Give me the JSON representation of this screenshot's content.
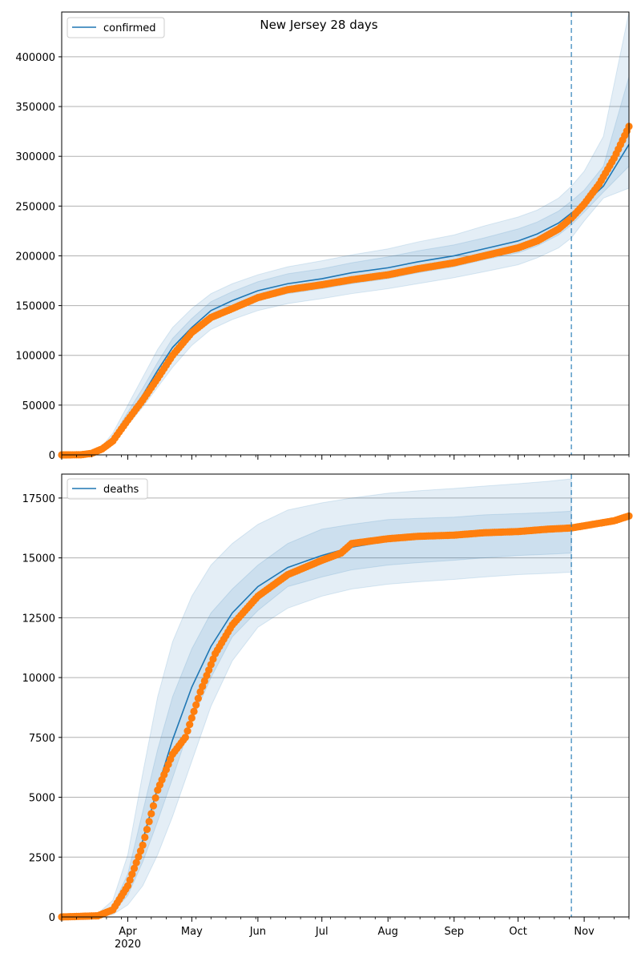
{
  "figure": {
    "title": "New Jersey 28 days"
  },
  "x_axis": {
    "month_labels": [
      "Apr",
      "May",
      "Jun",
      "Jul",
      "Aug",
      "Sep",
      "Oct",
      "Nov"
    ],
    "year_label": "2020",
    "xlim": [
      "2020-03-01",
      "2020-11-22"
    ],
    "cutoff_date": "2020-10-26"
  },
  "colors": {
    "line": "#1f77b4",
    "points": "#ff7f0e",
    "band": "#1f77b4",
    "grid": "#b0b0b0"
  },
  "chart_data": [
    {
      "type": "line",
      "legend": {
        "label": "confirmed",
        "placement": "upper-left"
      },
      "ylim": [
        0,
        445000
      ],
      "yticks": [
        0,
        50000,
        100000,
        150000,
        200000,
        250000,
        300000,
        350000,
        400000
      ],
      "ytick_labels": [
        "0",
        "50000",
        "100000",
        "150000",
        "200000",
        "250000",
        "300000",
        "350000",
        "400000"
      ],
      "grid": "horizontal",
      "model_line": {
        "dates": [
          "2020-03-01",
          "2020-03-15",
          "2020-03-20",
          "2020-03-25",
          "2020-04-01",
          "2020-04-08",
          "2020-04-15",
          "2020-04-22",
          "2020-05-01",
          "2020-05-10",
          "2020-05-20",
          "2020-06-01",
          "2020-06-15",
          "2020-07-01",
          "2020-07-15",
          "2020-08-01",
          "2020-08-15",
          "2020-09-01",
          "2020-09-15",
          "2020-10-01",
          "2020-10-10",
          "2020-10-20",
          "2020-10-26",
          "2020-11-01",
          "2020-11-10",
          "2020-11-22"
        ],
        "values": [
          0,
          500,
          6000,
          16000,
          38000,
          60000,
          85000,
          108000,
          128000,
          145000,
          155000,
          165000,
          172000,
          177000,
          183000,
          188000,
          194000,
          200000,
          207000,
          215000,
          222000,
          233000,
          243000,
          252000,
          270000,
          312000
        ]
      },
      "observed": {
        "dates": [
          "2020-03-01",
          "2020-03-10",
          "2020-03-15",
          "2020-03-20",
          "2020-03-25",
          "2020-04-01",
          "2020-04-08",
          "2020-04-15",
          "2020-04-22",
          "2020-05-01",
          "2020-05-10",
          "2020-05-20",
          "2020-06-01",
          "2020-06-15",
          "2020-07-01",
          "2020-07-15",
          "2020-08-01",
          "2020-08-15",
          "2020-09-01",
          "2020-09-15",
          "2020-10-01",
          "2020-10-10",
          "2020-10-20",
          "2020-10-26",
          "2020-11-01",
          "2020-11-08",
          "2020-11-15",
          "2020-11-22"
        ],
        "values": [
          0,
          100,
          1500,
          6000,
          14000,
          35000,
          55000,
          77000,
          100000,
          123000,
          138000,
          147000,
          158000,
          166000,
          171000,
          176000,
          181000,
          187000,
          193000,
          200000,
          208000,
          215000,
          227000,
          238000,
          252000,
          272000,
          298000,
          330000
        ]
      },
      "bands": [
        {
          "lower": [
            0,
            200,
            4000,
            13000,
            30000,
            48000,
            68000,
            88000,
            110000,
            126000,
            136000,
            145000,
            152000,
            157000,
            162000,
            167000,
            172000,
            178000,
            184000,
            191000,
            198000,
            208000,
            218000,
            235000,
            258000,
            268000
          ],
          "upper": [
            0,
            1000,
            9000,
            22000,
            50000,
            78000,
            106000,
            128000,
            147000,
            162000,
            172000,
            181000,
            189000,
            195000,
            201000,
            207000,
            214000,
            221000,
            230000,
            239000,
            246000,
            258000,
            270000,
            285000,
            320000,
            445000
          ]
        },
        {
          "lower": [
            0,
            300,
            5000,
            14500,
            34000,
            54000,
            77000,
            99000,
            120000,
            136000,
            146000,
            155000,
            162000,
            167000,
            172000,
            177000,
            183000,
            189000,
            196000,
            203000,
            210000,
            221000,
            231000,
            244000,
            264000,
            290000
          ],
          "upper": [
            0,
            800,
            7500,
            18500,
            43000,
            67000,
            93000,
            117000,
            137000,
            154000,
            164000,
            174000,
            182000,
            187000,
            193000,
            199000,
            205000,
            211000,
            218000,
            227000,
            234000,
            245000,
            255000,
            266000,
            290000,
            380000
          ]
        }
      ]
    },
    {
      "type": "line",
      "legend": {
        "label": "deaths",
        "placement": "upper-left"
      },
      "ylim": [
        0,
        18500
      ],
      "yticks": [
        0,
        2500,
        5000,
        7500,
        10000,
        12500,
        15000,
        17500
      ],
      "ytick_labels": [
        "0",
        "2500",
        "5000",
        "7500",
        "10000",
        "12500",
        "15000",
        "17500"
      ],
      "grid": "horizontal",
      "model_line": {
        "dates": [
          "2020-03-01",
          "2020-03-18",
          "2020-03-25",
          "2020-04-01",
          "2020-04-08",
          "2020-04-15",
          "2020-04-22",
          "2020-05-01",
          "2020-05-10",
          "2020-05-20",
          "2020-06-01",
          "2020-06-15",
          "2020-07-01",
          "2020-07-15",
          "2020-08-01",
          "2020-08-15",
          "2020-09-01",
          "2020-09-15",
          "2020-10-01",
          "2020-10-15",
          "2020-10-26",
          "2020-11-05",
          "2020-11-15",
          "2020-11-22"
        ],
        "values": [
          0,
          60,
          300,
          1200,
          3200,
          5400,
          7400,
          9600,
          11300,
          12700,
          13800,
          14600,
          15100,
          15450,
          15700,
          15800,
          15900,
          16000,
          16100,
          16150,
          16250,
          16350,
          16500,
          16700
        ]
      },
      "observed": {
        "dates": [
          "2020-03-01",
          "2020-03-18",
          "2020-03-25",
          "2020-04-01",
          "2020-04-08",
          "2020-04-15",
          "2020-04-22",
          "2020-04-28",
          "2020-05-05",
          "2020-05-12",
          "2020-05-20",
          "2020-06-01",
          "2020-06-15",
          "2020-07-01",
          "2020-07-10",
          "2020-07-15",
          "2020-08-01",
          "2020-08-15",
          "2020-09-01",
          "2020-09-15",
          "2020-10-01",
          "2020-10-15",
          "2020-10-26",
          "2020-11-05",
          "2020-11-15",
          "2020-11-22"
        ],
        "values": [
          0,
          50,
          300,
          1300,
          3000,
          5300,
          6800,
          7500,
          9400,
          11000,
          12200,
          13400,
          14300,
          14900,
          15200,
          15600,
          15800,
          15900,
          15950,
          16050,
          16100,
          16200,
          16250,
          16400,
          16550,
          16750
        ]
      },
      "bands": [
        {
          "lower": [
            0,
            20,
            100,
            500,
            1300,
            2600,
            4200,
            6500,
            8800,
            10700,
            12100,
            12900,
            13400,
            13700,
            13900,
            14000,
            14100,
            14200,
            14300,
            14350,
            14400
          ],
          "upper": [
            0,
            150,
            700,
            2600,
            6000,
            9200,
            11500,
            13400,
            14700,
            15600,
            16400,
            17000,
            17300,
            17500,
            17700,
            17800,
            17900,
            18000,
            18100,
            18200,
            18300
          ]
        },
        {
          "lower": [
            0,
            40,
            200,
            900,
            2300,
            4000,
            5800,
            8200,
            10000,
            11700,
            12800,
            13800,
            14200,
            14500,
            14700,
            14800,
            14900,
            15000,
            15100,
            15150,
            15200
          ],
          "upper": [
            0,
            90,
            450,
            1800,
            4400,
            7000,
            9200,
            11200,
            12700,
            13700,
            14700,
            15600,
            16200,
            16400,
            16600,
            16650,
            16700,
            16800,
            16850,
            16900,
            16950
          ]
        }
      ],
      "band_dates": [
        "2020-03-01",
        "2020-03-18",
        "2020-03-25",
        "2020-04-01",
        "2020-04-08",
        "2020-04-15",
        "2020-04-22",
        "2020-05-01",
        "2020-05-10",
        "2020-05-20",
        "2020-06-01",
        "2020-06-15",
        "2020-07-01",
        "2020-07-15",
        "2020-08-01",
        "2020-08-15",
        "2020-09-01",
        "2020-09-15",
        "2020-10-01",
        "2020-10-15",
        "2020-10-26"
      ]
    }
  ]
}
